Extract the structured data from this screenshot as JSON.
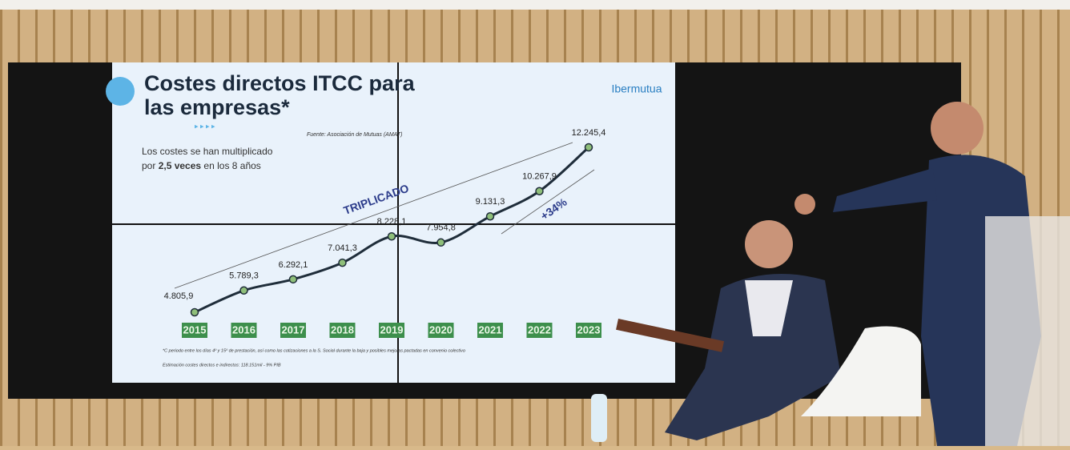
{
  "chart_data": {
    "type": "line",
    "title": "Costes directos ITCC para las empresas*",
    "logo": "Ibermutua",
    "source": "Fuente: Asociación de Mutuas (AMAT)",
    "subtitle_pre": "Los costes se han multiplicado",
    "subtitle_mid": "por",
    "subtitle_bold": "2,5 veces",
    "subtitle_post": "en los 8 años",
    "annotation_trend": "TRIPLICADO",
    "annotation_growth": "+34%",
    "footnote": "*C periodo entre los días 4º y 15º de prestación, así como las cotizaciones a la S. Social durante la baja y posibles mejoras pactadas en convenio colectivo",
    "footnote2": "Estimación costes directos e indirectos: 118.151mil - 9% PIB",
    "categories": [
      "2015",
      "2016",
      "2017",
      "2018",
      "2019",
      "2020",
      "2021",
      "2022",
      "2023"
    ],
    "values": [
      4805.9,
      5789.3,
      6292.1,
      7041.3,
      8228.1,
      7954.8,
      9131.3,
      10267.9,
      12245.4
    ],
    "value_labels": [
      "4.805,9",
      "5.789,3",
      "6.292,1",
      "7.041,3",
      "8.228,1",
      "7.954,8",
      "9.131,3",
      "10.267,9",
      "12.245,4"
    ],
    "color": "#1f2d3a",
    "marker_color": "#8fbf7a",
    "category_box_color": "#3d8f4c"
  }
}
